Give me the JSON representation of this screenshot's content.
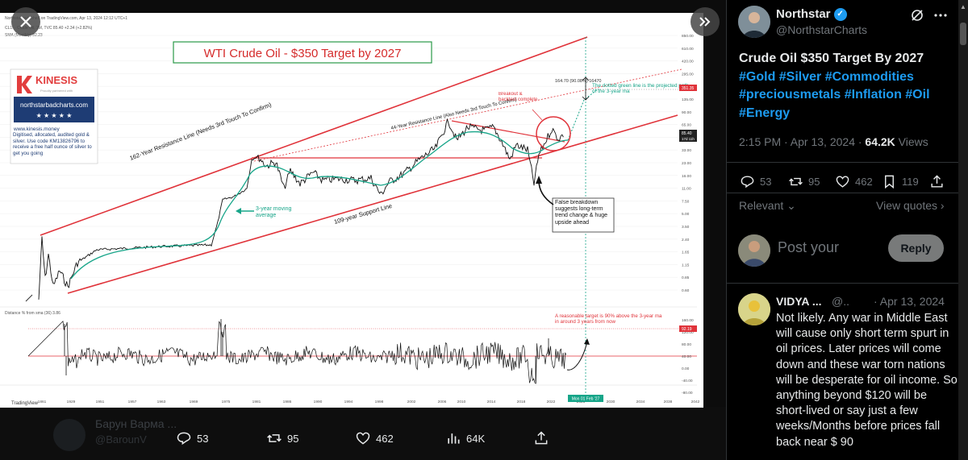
{
  "viewer": {
    "ghost_name": "Барун Варма ...",
    "ghost_handle": "@BarounV",
    "actions": {
      "replies": "53",
      "reposts": "95",
      "likes": "462",
      "views": "64K"
    }
  },
  "chart_image": {
    "header_line1": "Northstar published on TradingView.com, Apr 13, 2024 12:12 UTC+1",
    "header_line2": "CL1! · Crude Oil, 1M, TVC  85.40 +2.34 (+2.82%)",
    "header_line3": "SMA (Monthly)  82.23",
    "title": "WTI Crude Oil - $350 Target by 2027",
    "sponsor": {
      "brand": "KINESIS",
      "tagline": "Proudly partnered with",
      "site": "northstarbadcharts.com",
      "stars": "★ ★ ★ ★ ★",
      "link": "www.kinesis.money",
      "blurb": "Digitised, allocated, audited gold & silver. Use code KM13826796 to receive a free half ounce of silver to get you going"
    },
    "annotations": {
      "resistance_162": "162-Year Resistance Line (Needs 3rd Touch To Confirm)",
      "resistance_44": "44-Year Resistance Line (Also Needs 3rd Touch To Confirm)",
      "support_109": "109-year Support Line",
      "sma_label": "3-year moving average",
      "breakout": "Breakout & backtest complete",
      "false_breakdown": "False breakdown suggests long-term trend change & huge upside ahead",
      "dotted_green": "The dotted green line is the projected path of the 3-year ma",
      "target_readout": "164.70 (90.08%) 16470",
      "osc_label": "Distance % from sma (36)  3.86",
      "osc_target": "A reasonable target is 90% above the 3-year ma in around 3 years from now",
      "date_marker": "Mon 01 Feb '27",
      "tradingview": "TradingView"
    },
    "price_ticks": [
      "850.00",
      "610.00",
      "420.00",
      "295.00",
      "195.00",
      "135.00",
      "90.00",
      "65.00",
      "47.00",
      "33.00",
      "23.00",
      "16.00",
      "11.00",
      "7.50",
      "5.00",
      "3.50",
      "2.40",
      "1.65",
      "1.15",
      "0.85",
      "0.60"
    ],
    "price_tags": [
      "351.35",
      "85.40",
      "17d 11h"
    ],
    "osc_ticks": [
      "160.00",
      "120.00",
      "80.00",
      "40.00",
      "0.00",
      "-40.00",
      "-80.00"
    ],
    "osc_tag": "92.19",
    "year_ticks": [
      "1861",
      "1929",
      "1951",
      "1957",
      "1963",
      "1969",
      "1975",
      "1981",
      "1986",
      "1990",
      "1994",
      "1998",
      "2002",
      "2006",
      "2010",
      "2014",
      "2018",
      "2022",
      "2026",
      "2030",
      "2034",
      "2038",
      "2042"
    ]
  },
  "tweet": {
    "author_name": "Northstar",
    "author_handle": "@NorthstarCharts",
    "text_line1": "Crude Oil $350 Target By 2027",
    "hashtags_line1": "#Gold #Silver #Commodities",
    "hashtags_line2": "#preciousmetals #Inflation #Oil",
    "hashtags_line3": "#Energy",
    "time": "2:15 PM · Apr 13, 2024 · ",
    "views": "64.2K",
    "views_label": " Views",
    "stats": {
      "replies": "53",
      "reposts": "95",
      "likes": "462",
      "bookmarks": "119"
    },
    "relevant": "Relevant",
    "view_quotes": "View quotes",
    "post_placeholder": "Post your",
    "reply_button": "Reply"
  },
  "reply": {
    "name": "VIDYA ...",
    "handle": "@..",
    "date": "· Apr 13, 2024",
    "text": "Not likely. Any war in Middle East will cause only short term spurt in oil prices. Later prices will come down and these war torn nations will be desperate for oil income. So anything beyond $120 will be short-lived or say just a few weeks/Months before prices fall back near $ 90"
  }
}
